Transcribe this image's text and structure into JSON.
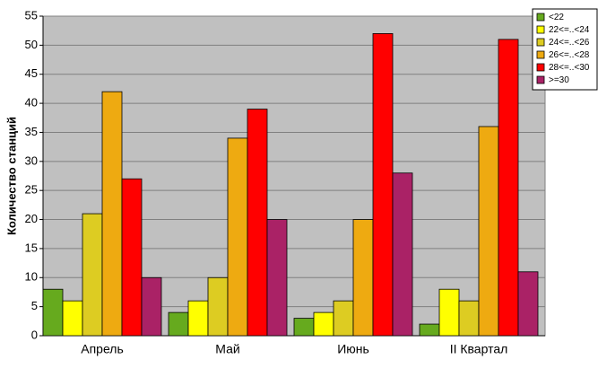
{
  "chart_data": {
    "type": "bar",
    "y_label": "Количество станций",
    "categories": [
      "Апрель",
      "Май",
      "Июнь",
      "II Квартал"
    ],
    "series": [
      {
        "name": "<22",
        "color": "#66aa1e",
        "values": [
          8,
          4,
          3,
          2
        ]
      },
      {
        "name": "22<=..<24",
        "color": "#ffff00",
        "values": [
          6,
          6,
          4,
          8
        ]
      },
      {
        "name": "24<=..<26",
        "color": "#ddcc22",
        "values": [
          21,
          10,
          6,
          6
        ]
      },
      {
        "name": "26<=..<28",
        "color": "#eeaa11",
        "values": [
          42,
          34,
          20,
          36
        ]
      },
      {
        "name": "28<=..<30",
        "color": "#ff0000",
        "values": [
          27,
          39,
          52,
          51
        ]
      },
      {
        "name": ">=30",
        "color": "#aa2266",
        "values": [
          10,
          20,
          28,
          11
        ]
      }
    ],
    "ylim": [
      0,
      55
    ],
    "yticks": [
      0,
      5,
      10,
      15,
      20,
      25,
      30,
      35,
      40,
      45,
      50,
      55
    ],
    "grid": true,
    "legend": "top-right"
  }
}
